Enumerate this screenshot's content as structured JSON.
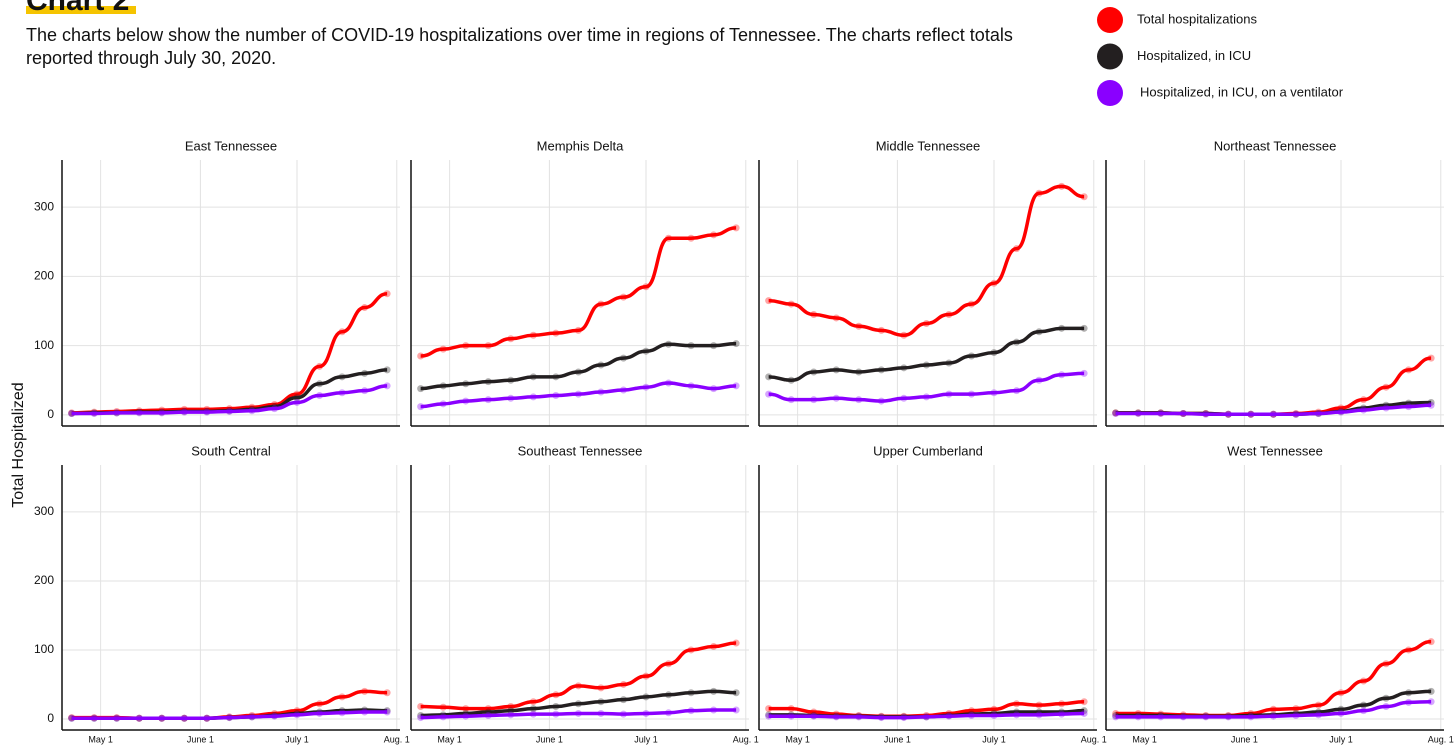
{
  "title": "Chart 2",
  "subtitle": "The charts below show the number of COVID-19 hospitalizations over time in regions of Tennessee. The charts reflect totals reported through July 30, 2020.",
  "y_label": "Total Hospitalized",
  "chart_data": [
    {
      "type": "line",
      "title": "East Tennessee",
      "x": [
        "Apr 22",
        "Apr 29",
        "May 6",
        "May 13",
        "May 20",
        "May 27",
        "Jun 3",
        "Jun 10",
        "Jun 17",
        "Jun 24",
        "Jul 1",
        "Jul 8",
        "Jul 15",
        "Jul 22",
        "Jul 29"
      ],
      "xlim": [
        "Apr 19",
        "Aug 2"
      ],
      "xticks": [
        "May 1",
        "June 1",
        "July 1",
        {
          "value": "Aug 1",
          "label": "Aug. 1"
        }
      ],
      "ylim": [
        -16,
        368
      ],
      "yticks": [
        0,
        100,
        200,
        300
      ],
      "grid": true,
      "series": [
        {
          "name": "Total hospitalizations",
          "color": "#ff0000",
          "values": [
            3,
            4,
            5,
            6,
            7,
            8,
            8,
            9,
            11,
            15,
            30,
            70,
            120,
            155,
            175
          ]
        },
        {
          "name": "Hospitalized, in ICU",
          "color": "#231f20",
          "values": [
            2,
            3,
            3,
            4,
            4,
            5,
            5,
            6,
            8,
            12,
            25,
            45,
            55,
            60,
            65
          ]
        },
        {
          "name": "Hospitalized, in ICU, on a ventilator",
          "color": "#8a00ff",
          "values": [
            2,
            2,
            3,
            3,
            3,
            4,
            4,
            5,
            6,
            9,
            18,
            28,
            32,
            35,
            42
          ]
        }
      ]
    },
    {
      "type": "line",
      "title": "Memphis Delta",
      "x": [
        "Apr 22",
        "Apr 29",
        "May 6",
        "May 13",
        "May 20",
        "May 27",
        "Jun 3",
        "Jun 10",
        "Jun 17",
        "Jun 24",
        "Jul 1",
        "Jul 8",
        "Jul 15",
        "Jul 22",
        "Jul 29"
      ],
      "xlim": [
        "Apr 19",
        "Aug 2"
      ],
      "xticks": [
        "May 1",
        "June 1",
        "July 1",
        {
          "value": "Aug 1",
          "label": "Aug. 1"
        }
      ],
      "ylim": [
        -16,
        368
      ],
      "yticks": [
        0,
        100,
        200,
        300
      ],
      "grid": true,
      "series": [
        {
          "name": "Total hospitalizations",
          "color": "#ff0000",
          "values": [
            85,
            95,
            100,
            100,
            110,
            115,
            118,
            122,
            160,
            170,
            185,
            255,
            255,
            260,
            270
          ]
        },
        {
          "name": "Hospitalized, in ICU",
          "color": "#231f20",
          "values": [
            38,
            42,
            45,
            48,
            50,
            55,
            55,
            62,
            72,
            82,
            92,
            102,
            100,
            100,
            103
          ]
        },
        {
          "name": "Hospitalized, in ICU, on a ventilator",
          "color": "#8a00ff",
          "values": [
            12,
            16,
            20,
            22,
            24,
            26,
            28,
            30,
            33,
            36,
            40,
            46,
            42,
            38,
            42
          ]
        }
      ]
    },
    {
      "type": "line",
      "title": "Middle Tennessee",
      "x": [
        "Apr 22",
        "Apr 29",
        "May 6",
        "May 13",
        "May 20",
        "May 27",
        "Jun 3",
        "Jun 10",
        "Jun 17",
        "Jun 24",
        "Jul 1",
        "Jul 8",
        "Jul 15",
        "Jul 22",
        "Jul 29"
      ],
      "xlim": [
        "Apr 19",
        "Aug 2"
      ],
      "xticks": [
        "May 1",
        "June 1",
        "July 1",
        {
          "value": "Aug 1",
          "label": "Aug. 1"
        }
      ],
      "ylim": [
        -16,
        368
      ],
      "yticks": [
        0,
        100,
        200,
        300
      ],
      "grid": true,
      "series": [
        {
          "name": "Total hospitalizations",
          "color": "#ff0000",
          "values": [
            165,
            160,
            145,
            140,
            128,
            122,
            115,
            132,
            145,
            160,
            190,
            240,
            320,
            330,
            315
          ]
        },
        {
          "name": "Hospitalized, in ICU",
          "color": "#231f20",
          "values": [
            55,
            50,
            62,
            65,
            62,
            65,
            68,
            72,
            75,
            85,
            90,
            105,
            120,
            125,
            125
          ]
        },
        {
          "name": "Hospitalized, in ICU, on a ventilator",
          "color": "#8a00ff",
          "values": [
            30,
            22,
            22,
            24,
            22,
            20,
            24,
            26,
            30,
            30,
            32,
            35,
            50,
            58,
            60
          ]
        }
      ]
    },
    {
      "type": "line",
      "title": "Northeast Tennessee",
      "x": [
        "Apr 22",
        "Apr 29",
        "May 6",
        "May 13",
        "May 20",
        "May 27",
        "Jun 3",
        "Jun 10",
        "Jun 17",
        "Jun 24",
        "Jul 1",
        "Jul 8",
        "Jul 15",
        "Jul 22",
        "Jul 29"
      ],
      "xlim": [
        "Apr 19",
        "Aug 2"
      ],
      "xticks": [
        "May 1",
        "June 1",
        "July 1",
        {
          "value": "Aug 1",
          "label": "Aug. 1"
        }
      ],
      "ylim": [
        -16,
        368
      ],
      "yticks": [
        0,
        100,
        200,
        300
      ],
      "grid": true,
      "series": [
        {
          "name": "Total hospitalizations",
          "color": "#ff0000",
          "values": [
            3,
            3,
            3,
            2,
            2,
            1,
            1,
            1,
            2,
            4,
            10,
            22,
            40,
            65,
            82
          ]
        },
        {
          "name": "Hospitalized, in ICU",
          "color": "#231f20",
          "values": [
            3,
            3,
            3,
            2,
            2,
            1,
            1,
            1,
            1,
            2,
            5,
            10,
            14,
            17,
            18
          ]
        },
        {
          "name": "Hospitalized, in ICU, on a ventilator",
          "color": "#8a00ff",
          "values": [
            2,
            2,
            2,
            2,
            1,
            1,
            1,
            1,
            1,
            2,
            4,
            7,
            10,
            12,
            14
          ]
        }
      ]
    },
    {
      "type": "line",
      "title": "South Central",
      "x": [
        "Apr 22",
        "Apr 29",
        "May 6",
        "May 13",
        "May 20",
        "May 27",
        "Jun 3",
        "Jun 10",
        "Jun 17",
        "Jun 24",
        "Jul 1",
        "Jul 8",
        "Jul 15",
        "Jul 22",
        "Jul 29"
      ],
      "xlim": [
        "Apr 19",
        "Aug 2"
      ],
      "xticks": [
        "May 1",
        "June 1",
        "July 1",
        {
          "value": "Aug 1",
          "label": "Aug. 1"
        }
      ],
      "ylim": [
        -16,
        368
      ],
      "yticks": [
        0,
        100,
        200,
        300
      ],
      "grid": true,
      "series": [
        {
          "name": "Total hospitalizations",
          "color": "#ff0000",
          "values": [
            2,
            2,
            2,
            1,
            1,
            1,
            1,
            3,
            5,
            8,
            12,
            22,
            32,
            40,
            38
          ]
        },
        {
          "name": "Hospitalized, in ICU",
          "color": "#231f20",
          "values": [
            1,
            1,
            1,
            1,
            1,
            1,
            1,
            2,
            3,
            5,
            8,
            10,
            12,
            13,
            12
          ]
        },
        {
          "name": "Hospitalized, in ICU, on a ventilator",
          "color": "#8a00ff",
          "values": [
            1,
            1,
            1,
            1,
            1,
            1,
            1,
            2,
            3,
            4,
            6,
            8,
            9,
            10,
            10
          ]
        }
      ]
    },
    {
      "type": "line",
      "title": "Southeast Tennessee",
      "x": [
        "Apr 22",
        "Apr 29",
        "May 6",
        "May 13",
        "May 20",
        "May 27",
        "Jun 3",
        "Jun 10",
        "Jun 17",
        "Jun 24",
        "Jul 1",
        "Jul 8",
        "Jul 15",
        "Jul 22",
        "Jul 29"
      ],
      "xlim": [
        "Apr 19",
        "Aug 2"
      ],
      "xticks": [
        "May 1",
        "June 1",
        "July 1",
        {
          "value": "Aug 1",
          "label": "Aug. 1"
        }
      ],
      "ylim": [
        -16,
        368
      ],
      "yticks": [
        0,
        100,
        200,
        300
      ],
      "grid": true,
      "series": [
        {
          "name": "Total hospitalizations",
          "color": "#ff0000",
          "values": [
            18,
            17,
            15,
            15,
            18,
            25,
            35,
            48,
            45,
            50,
            62,
            80,
            100,
            105,
            110
          ]
        },
        {
          "name": "Hospitalized, in ICU",
          "color": "#231f20",
          "values": [
            5,
            6,
            8,
            10,
            12,
            15,
            18,
            22,
            25,
            28,
            32,
            35,
            38,
            40,
            38
          ]
        },
        {
          "name": "Hospitalized, in ICU, on a ventilator",
          "color": "#8a00ff",
          "values": [
            2,
            3,
            4,
            5,
            6,
            7,
            7,
            8,
            8,
            7,
            8,
            9,
            12,
            13,
            13
          ]
        }
      ]
    },
    {
      "type": "line",
      "title": "Upper Cumberland",
      "x": [
        "Apr 22",
        "Apr 29",
        "May 6",
        "May 13",
        "May 20",
        "May 27",
        "Jun 3",
        "Jun 10",
        "Jun 17",
        "Jun 24",
        "Jul 1",
        "Jul 8",
        "Jul 15",
        "Jul 22",
        "Jul 29"
      ],
      "xlim": [
        "Apr 19",
        "Aug 2"
      ],
      "xticks": [
        "May 1",
        "June 1",
        "July 1",
        {
          "value": "Aug 1",
          "label": "Aug. 1"
        }
      ],
      "ylim": [
        -16,
        368
      ],
      "yticks": [
        0,
        100,
        200,
        300
      ],
      "grid": true,
      "series": [
        {
          "name": "Total hospitalizations",
          "color": "#ff0000",
          "values": [
            15,
            15,
            10,
            7,
            5,
            4,
            4,
            5,
            8,
            12,
            14,
            22,
            20,
            22,
            25
          ]
        },
        {
          "name": "Hospitalized, in ICU",
          "color": "#231f20",
          "values": [
            6,
            6,
            5,
            4,
            4,
            3,
            3,
            3,
            5,
            7,
            8,
            10,
            10,
            10,
            12
          ]
        },
        {
          "name": "Hospitalized, in ICU, on a ventilator",
          "color": "#8a00ff",
          "values": [
            4,
            4,
            4,
            3,
            3,
            2,
            2,
            3,
            4,
            5,
            5,
            6,
            6,
            7,
            8
          ]
        }
      ]
    },
    {
      "type": "line",
      "title": "West Tennessee",
      "x": [
        "Apr 22",
        "Apr 29",
        "May 6",
        "May 13",
        "May 20",
        "May 27",
        "Jun 3",
        "Jun 10",
        "Jun 17",
        "Jun 24",
        "Jul 1",
        "Jul 8",
        "Jul 15",
        "Jul 22",
        "Jul 29"
      ],
      "xlim": [
        "Apr 19",
        "Aug 2"
      ],
      "xticks": [
        "May 1",
        "June 1",
        "July 1",
        {
          "value": "Aug 1",
          "label": "Aug. 1"
        }
      ],
      "ylim": [
        -16,
        368
      ],
      "yticks": [
        0,
        100,
        200,
        300
      ],
      "grid": true,
      "series": [
        {
          "name": "Total hospitalizations",
          "color": "#ff0000",
          "values": [
            8,
            8,
            7,
            6,
            5,
            5,
            8,
            14,
            15,
            20,
            38,
            55,
            80,
            100,
            112
          ]
        },
        {
          "name": "Hospitalized, in ICU",
          "color": "#231f20",
          "values": [
            5,
            5,
            5,
            4,
            4,
            4,
            5,
            6,
            8,
            10,
            14,
            20,
            30,
            38,
            40
          ]
        },
        {
          "name": "Hospitalized, in ICU, on a ventilator",
          "color": "#8a00ff",
          "values": [
            3,
            3,
            3,
            3,
            3,
            3,
            3,
            4,
            5,
            6,
            8,
            12,
            18,
            24,
            25
          ]
        }
      ]
    }
  ]
}
